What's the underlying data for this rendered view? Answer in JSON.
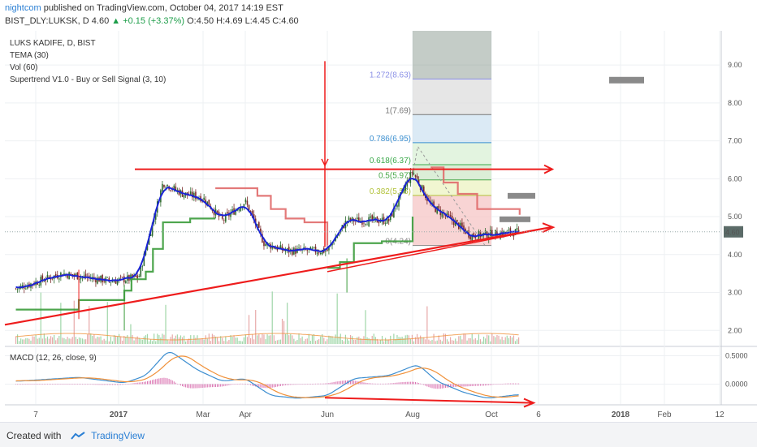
{
  "header": {
    "author": "nightcom",
    "published_text": " published on TradingView.com, October 04, 2017 14:19 EST",
    "symbol_line_prefix": "BIST_DLY:LUKSK, D  4.60 ",
    "change": "▲ +0.15 (+3.37%)",
    "ohlc": " O:4.50 H:4.69 L:4.45 C:4.60"
  },
  "footer": {
    "created_with": "Created with",
    "brand": "TradingView"
  },
  "legend": [
    "LUKS KADIFE, D, BIST",
    "TEMA (30)",
    "Vol (60)",
    "Supertrend V1.0 - Buy or Sell Signal (3, 10)"
  ],
  "macd_legend": "MACD (12, 26, close, 9)",
  "colors": {
    "tema": "#1a23d6",
    "supertrend_up": "#3a9b3a",
    "supertrend_down": "#e06a6a",
    "trendline": "#ee1c1c",
    "macd": "#3d8ed0",
    "signal": "#f0913a",
    "hist": "#d0489a",
    "candle_up": "#2f6b2f",
    "candle_down": "#7a2a2a"
  },
  "chart_data": [
    {
      "type": "candlestick",
      "title": "LUKS KADIFE, D, BIST",
      "price_axis_ticks": [
        "9.00",
        "8.00",
        "7.00",
        "6.00",
        "5.00",
        "4.00",
        "3.00",
        "2.00"
      ],
      "last_price_label": "4.60",
      "y_range": [
        1.6,
        9.9
      ],
      "x_tick_labels": [
        "7",
        "2017",
        "Mar",
        "Apr",
        "Jun",
        "Aug",
        "Oct",
        "6",
        "2018",
        "Feb",
        "12"
      ],
      "fibonacci": [
        {
          "label": "0(4.24)",
          "price": 4.24
        },
        {
          "label": "0.382(5.56)",
          "price": 5.56
        },
        {
          "label": "0.5(5.97)",
          "price": 5.97
        },
        {
          "label": "0.618(6.37)",
          "price": 6.37
        },
        {
          "label": "0.786(6.95)",
          "price": 6.95
        },
        {
          "label": "1(7.69)",
          "price": 7.69
        },
        {
          "label": "1.272(8.63)",
          "price": 8.63
        }
      ],
      "close_approx": [
        {
          "x": "2016-12-01",
          "y": 3.1
        },
        {
          "x": "2016-12-15",
          "y": 3.5
        },
        {
          "x": "2016-12-30",
          "y": 3.3
        },
        {
          "x": "2017-01-15",
          "y": 3.4
        },
        {
          "x": "2017-02-01",
          "y": 5.9
        },
        {
          "x": "2017-02-15",
          "y": 5.6
        },
        {
          "x": "2017-03-01",
          "y": 5.5
        },
        {
          "x": "2017-03-15",
          "y": 4.9
        },
        {
          "x": "2017-04-01",
          "y": 5.4
        },
        {
          "x": "2017-04-15",
          "y": 4.3
        },
        {
          "x": "2017-05-01",
          "y": 4.1
        },
        {
          "x": "2017-05-15",
          "y": 4.1
        },
        {
          "x": "2017-06-01",
          "y": 4.1
        },
        {
          "x": "2017-06-15",
          "y": 4.9
        },
        {
          "x": "2017-07-01",
          "y": 4.9
        },
        {
          "x": "2017-07-15",
          "y": 4.9
        },
        {
          "x": "2017-08-01",
          "y": 6.2
        },
        {
          "x": "2017-08-15",
          "y": 5.3
        },
        {
          "x": "2017-09-01",
          "y": 4.9
        },
        {
          "x": "2017-09-15",
          "y": 4.5
        },
        {
          "x": "2017-10-04",
          "y": 4.6
        }
      ]
    },
    {
      "type": "line",
      "title": "MACD (12, 26, close, 9)",
      "axis_ticks": [
        "0.5000",
        "0.0000"
      ],
      "y_range": [
        -0.35,
        0.65
      ]
    }
  ]
}
